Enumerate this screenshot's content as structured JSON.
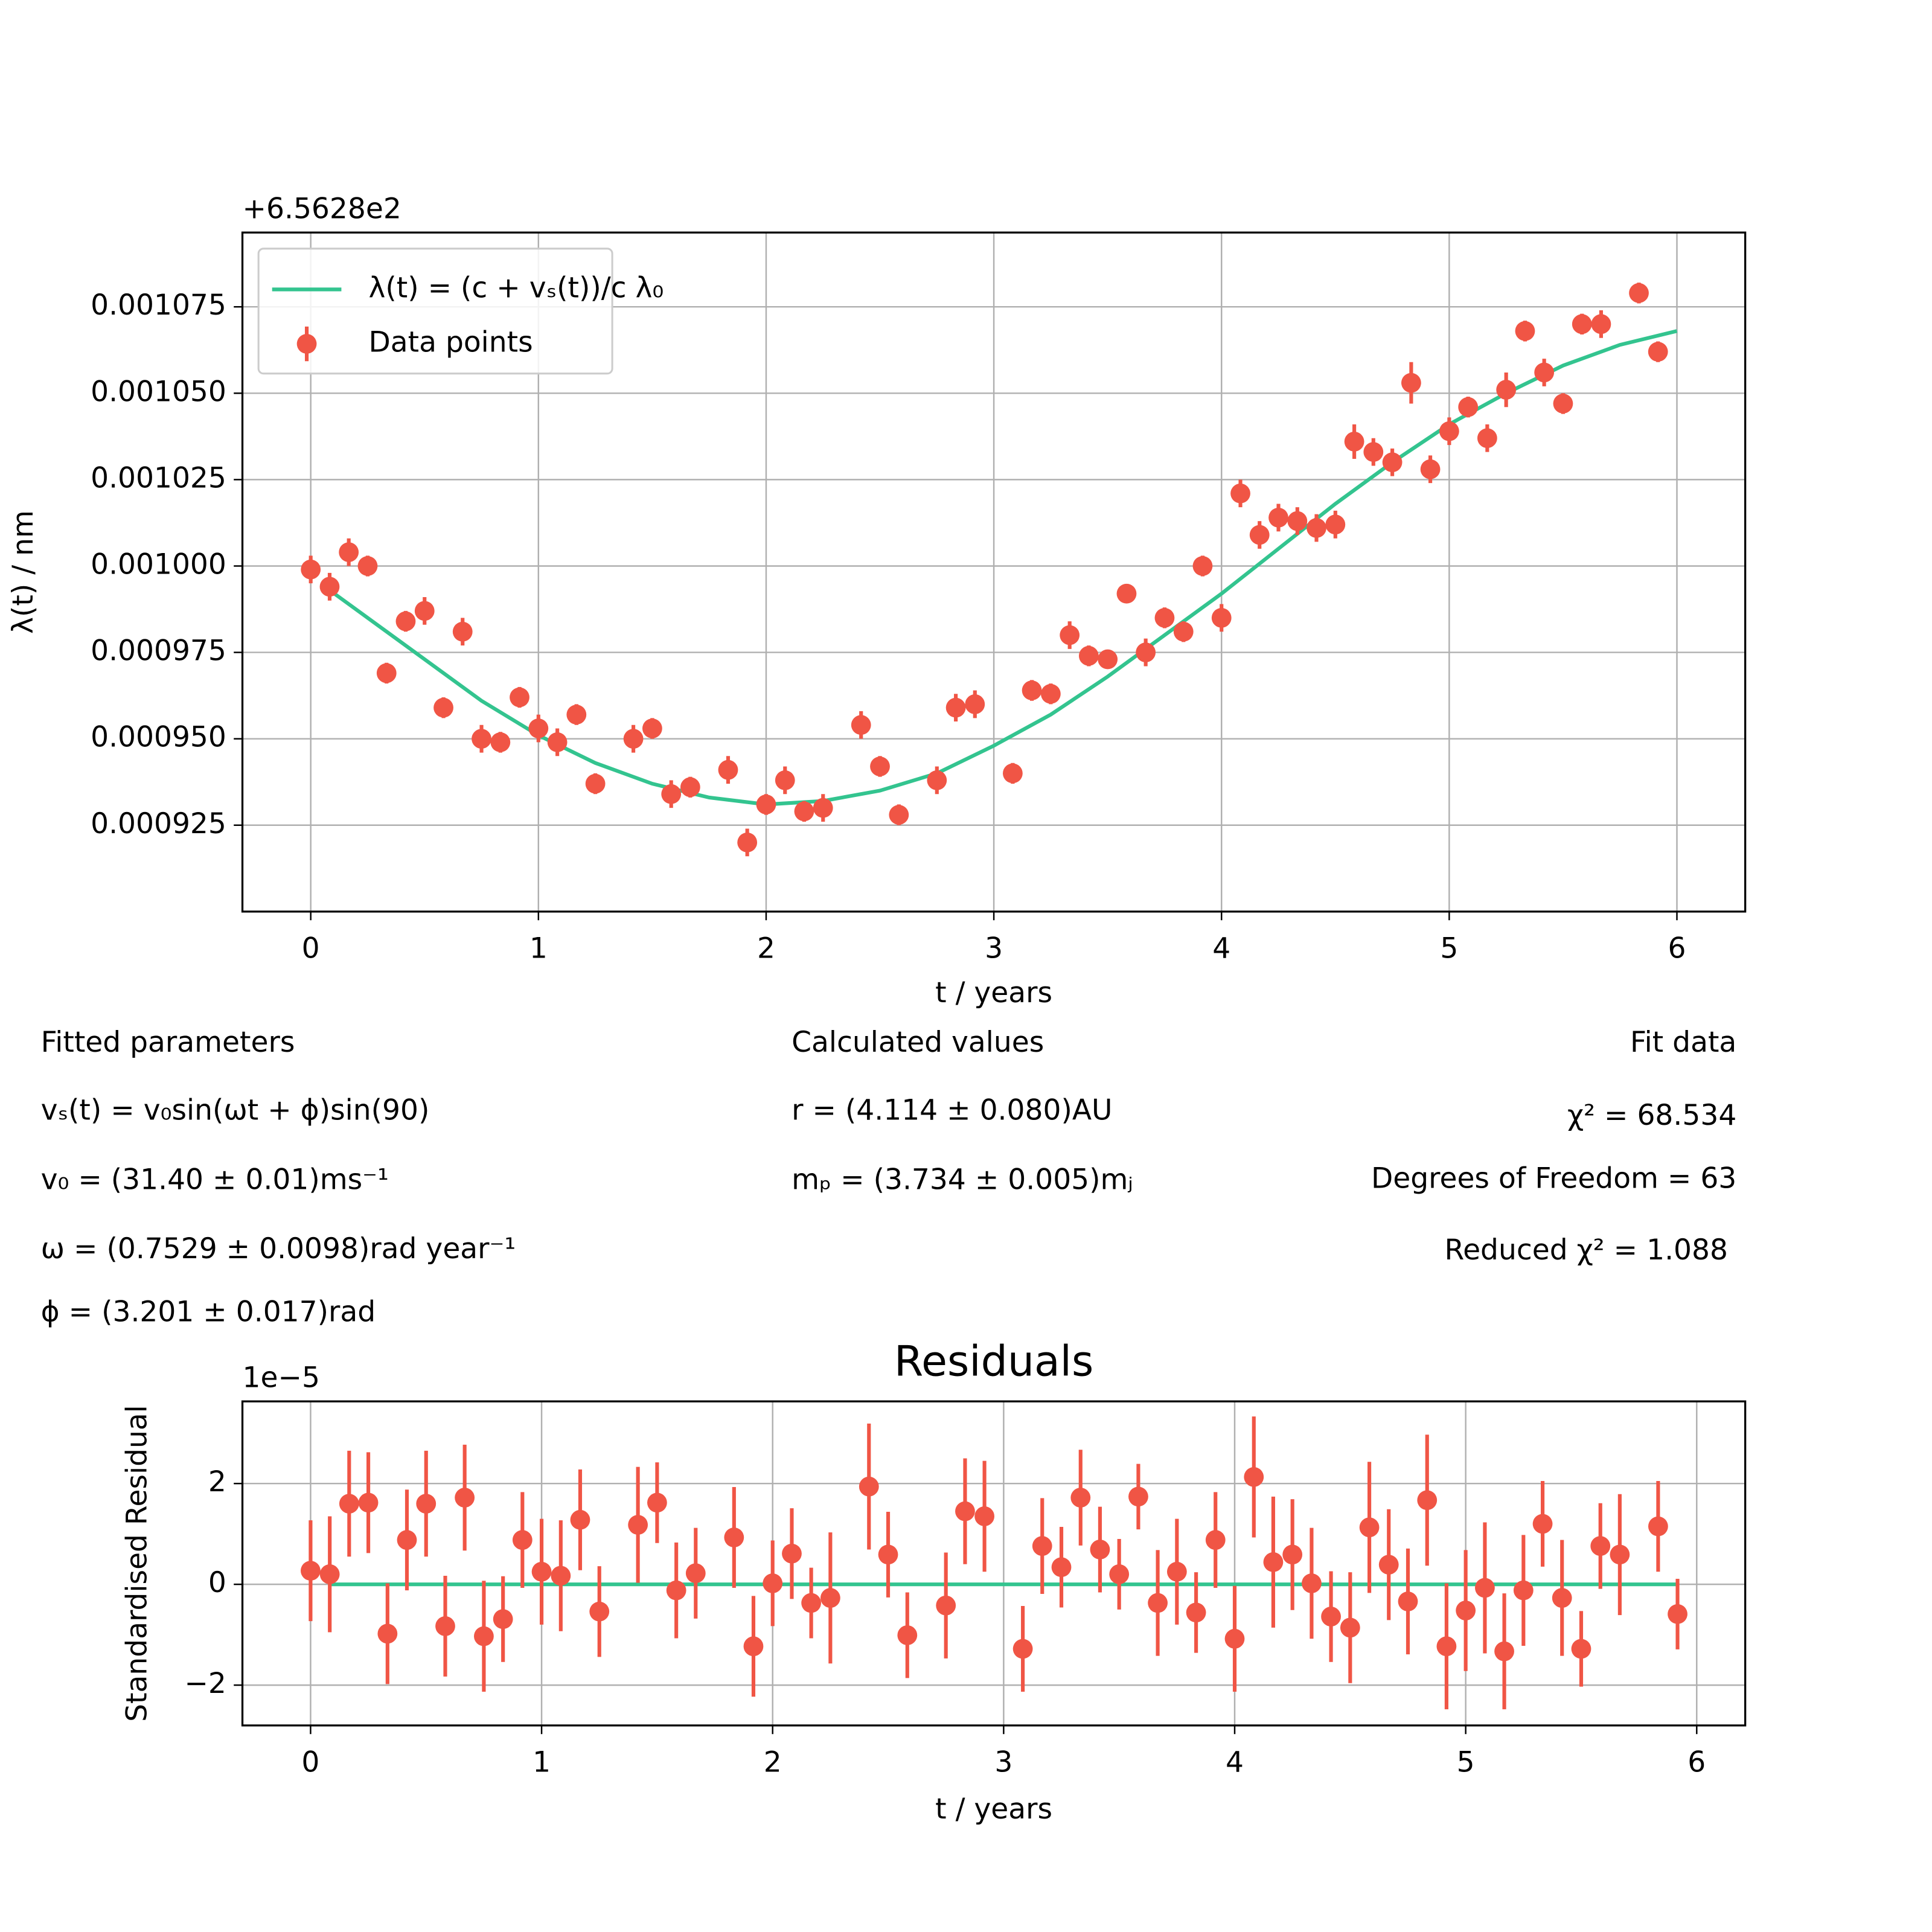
{
  "chart_data": [
    {
      "type": "scatter",
      "offset_text": "+6.5628e2",
      "xlabel": "t / years",
      "ylabel": "λ(t) / nm",
      "xlim": [
        -0.3,
        6.3
      ],
      "ylim": [
        0.0009,
        0.0010965
      ],
      "xticks": [
        0,
        1,
        2,
        3,
        4,
        5,
        6
      ],
      "yticks": [
        0.000925,
        {
          "value": 0.00095,
          "label": "0.000950"
        },
        0.000975,
        {
          "value": 0.001,
          "label": "0.001000"
        },
        0.001025,
        {
          "value": 0.00105,
          "label": "0.001050"
        },
        0.001075
      ],
      "grid": true,
      "legend": "upper left",
      "series": [
        {
          "name": "λ(t) = (c + vₛ(t))/c λ₀",
          "type": "line",
          "color": "#33c48f",
          "x": [
            0.083,
            0.25,
            0.5,
            0.75,
            1,
            1.25,
            1.5,
            1.75,
            2,
            2.25,
            2.5,
            2.75,
            3,
            3.25,
            3.5,
            3.75,
            4,
            4.25,
            4.5,
            4.75,
            5,
            5.25,
            5.5,
            5.75,
            6
          ],
          "values": [
            0.000993,
            0.000985,
            0.000973,
            0.000961,
            0.000951,
            0.000943,
            0.000937,
            0.000933,
            0.000931,
            0.000932,
            0.000935,
            0.00094,
            0.000948,
            0.000957,
            0.000968,
            0.00098,
            0.000992,
            0.001005,
            0.001018,
            0.00103,
            0.001041,
            0.00105,
            0.001058,
            0.001064,
            0.001068
          ]
        },
        {
          "name": "Data points",
          "type": "errorbar",
          "color": "#f05545",
          "x": [
            0,
            0.083,
            0.167,
            0.25,
            0.333,
            0.417,
            0.5,
            0.583,
            0.667,
            0.75,
            0.833,
            0.917,
            1,
            1.083,
            1.167,
            1.25,
            1.417,
            1.5,
            1.583,
            1.667,
            1.833,
            1.917,
            2,
            2.083,
            2.167,
            2.25,
            2.417,
            2.5,
            2.583,
            2.75,
            2.833,
            2.917,
            3.083,
            3.167,
            3.25,
            3.333,
            3.417,
            3.5,
            3.583,
            3.667,
            3.75,
            3.833,
            3.917,
            4,
            4.083,
            4.167,
            4.25,
            4.333,
            4.417,
            4.5,
            4.583,
            4.667,
            4.75,
            4.833,
            4.917,
            5,
            5.083,
            5.167,
            5.25,
            5.333,
            5.417,
            5.5,
            5.583,
            5.667,
            5.833,
            5.917
          ],
          "values": [
            0.000999,
            0.000994,
            0.001004,
            0.001,
            0.000969,
            0.000984,
            0.000987,
            0.000959,
            0.000981,
            0.00095,
            0.000949,
            0.000962,
            0.000953,
            0.000949,
            0.000957,
            0.000937,
            0.00095,
            0.000953,
            0.000934,
            0.000936,
            0.000941,
            0.00092,
            0.000931,
            0.000938,
            0.000929,
            0.00093,
            0.000954,
            0.000942,
            0.000928,
            0.000938,
            0.000959,
            0.00096,
            0.00094,
            0.000964,
            0.000963,
            0.00098,
            0.000974,
            0.000973,
            0.000992,
            0.000975,
            0.000985,
            0.000981,
            0.001,
            0.000985,
            0.001021,
            0.001009,
            0.001014,
            0.001013,
            0.001011,
            0.001012,
            0.001036,
            0.001033,
            0.00103,
            0.001053,
            0.001028,
            0.001039,
            0.001046,
            0.001037,
            0.001051,
            0.001068,
            0.001056,
            0.001047,
            0.00107,
            0.00107,
            0.001079,
            0.001062
          ],
          "yerr": [
            4e-06,
            4e-06,
            4e-06,
            3e-06,
            3e-06,
            3e-06,
            4e-06,
            3e-06,
            4e-06,
            4e-06,
            3e-06,
            3e-06,
            4e-06,
            4e-06,
            3e-06,
            3e-06,
            4e-06,
            3e-06,
            4e-06,
            3e-06,
            4e-06,
            4e-06,
            3e-06,
            4e-06,
            3e-06,
            4e-06,
            4e-06,
            3e-06,
            3e-06,
            4e-06,
            4e-06,
            4e-06,
            3e-06,
            3e-06,
            3e-06,
            4e-06,
            3e-06,
            2e-06,
            2e-06,
            4e-06,
            3e-06,
            3e-06,
            3e-06,
            4e-06,
            4e-06,
            4e-06,
            4e-06,
            4e-06,
            4e-06,
            4e-06,
            5e-06,
            4e-06,
            4e-06,
            6e-06,
            4e-06,
            4e-06,
            3e-06,
            4e-06,
            5e-06,
            3e-06,
            4e-06,
            3e-06,
            3e-06,
            4e-06,
            3e-06,
            3e-06
          ]
        }
      ],
      "annotations": {
        "fitted": [
          "Fitted parameters",
          "vₛ(t) = v₀sin(ωt + ϕ)sin(90)",
          "v₀ = (31.40 ± 0.01)ms⁻¹",
          "ω = (0.7529 ± 0.0098)rad year⁻¹",
          "ϕ = (3.201 ± 0.017)rad"
        ],
        "calculated": [
          "Calculated values",
          "r = (4.114 ± 0.080)AU",
          "mₚ = (3.734 ± 0.005)mⱼ"
        ],
        "fit_data": [
          "Fit data",
          "χ² = 68.534",
          "Degrees of Freedom = 63",
          "Reduced χ² = 1.088"
        ]
      }
    },
    {
      "type": "scatter",
      "title": "Residuals",
      "offset_text": "1e−5",
      "xlabel": "t / years",
      "ylabel": "Standardised Residual",
      "xlim": [
        -0.295,
        6.21
      ],
      "ylim": [
        -2.8,
        3.63
      ],
      "xticks": [
        0,
        1,
        2,
        3,
        4,
        5,
        6
      ],
      "yticks": [
        {
          "value": -2,
          "label": "−2"
        },
        0,
        2
      ],
      "grid": true,
      "series": [
        {
          "type": "line",
          "color": "#33c48f",
          "x": [
            0.083,
            5.917
          ],
          "values": [
            0,
            0
          ]
        },
        {
          "type": "errorbar",
          "color": "#f05545",
          "x": [
            0,
            0.083,
            0.167,
            0.25,
            0.333,
            0.417,
            0.5,
            0.583,
            0.667,
            0.75,
            0.833,
            0.917,
            1,
            1.083,
            1.167,
            1.25,
            1.417,
            1.5,
            1.583,
            1.667,
            1.833,
            1.917,
            2,
            2.083,
            2.167,
            2.25,
            2.417,
            2.5,
            2.583,
            2.75,
            2.833,
            2.917,
            3.083,
            3.167,
            3.25,
            3.333,
            3.417,
            3.5,
            3.583,
            3.667,
            3.75,
            3.833,
            3.917,
            4,
            4.083,
            4.167,
            4.25,
            4.333,
            4.417,
            4.5,
            4.583,
            4.667,
            4.75,
            4.833,
            4.917,
            5,
            5.083,
            5.167,
            5.25,
            5.333,
            5.417,
            5.5,
            5.583,
            5.667,
            5.833,
            5.917
          ],
          "values": [
            0.27,
            0.2,
            1.6,
            1.62,
            -0.98,
            0.88,
            1.6,
            -0.83,
            1.72,
            -1.03,
            -0.69,
            0.88,
            0.25,
            0.17,
            1.28,
            -0.54,
            1.18,
            1.62,
            -0.12,
            0.22,
            0.93,
            -1.23,
            0.02,
            0.61,
            -0.37,
            -0.27,
            1.94,
            0.59,
            -1.01,
            -0.42,
            1.45,
            1.35,
            -1.28,
            0.76,
            0.34,
            1.72,
            0.69,
            0.2,
            1.74,
            -0.37,
            0.25,
            -0.56,
            0.88,
            -1.08,
            2.13,
            0.44,
            0.59,
            0.02,
            -0.64,
            -0.86,
            1.13,
            0.39,
            -0.34,
            1.67,
            -1.23,
            -0.52,
            -0.07,
            -1.33,
            -0.12,
            1.2,
            -0.27,
            -1.28,
            0.76,
            0.59,
            1.15,
            -0.59
          ],
          "yerr": [
            1,
            1.15,
            1.05,
            1,
            1,
            1,
            1.05,
            1,
            1.05,
            1.1,
            0.85,
            0.95,
            1.05,
            1.1,
            1,
            0.9,
            1.15,
            0.8,
            0.95,
            0.9,
            1,
            1,
            0.85,
            0.9,
            0.7,
            1.3,
            1.25,
            0.85,
            0.85,
            1.05,
            1.05,
            1.1,
            0.85,
            0.95,
            0.8,
            0.95,
            0.85,
            0.7,
            0.65,
            1.05,
            1.05,
            0.8,
            0.95,
            1.05,
            1.2,
            1.3,
            1.1,
            1.1,
            0.9,
            1.1,
            1.3,
            1.1,
            1.05,
            1.3,
            1.25,
            1.2,
            1.3,
            1.15,
            1.1,
            0.85,
            1.15,
            0.75,
            0.85,
            1.2,
            0.9,
            0.7
          ]
        }
      ]
    }
  ]
}
